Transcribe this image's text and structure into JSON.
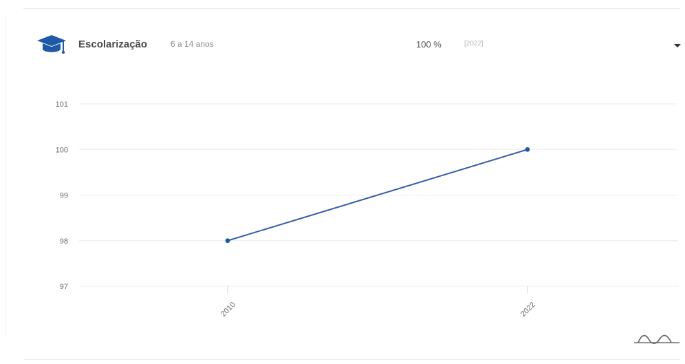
{
  "panel": {
    "title": "Escolarização",
    "subtitle": "6 a 14 anos",
    "value": "100 %",
    "value_year": "[2022]",
    "icon": "graduation-cap-icon",
    "dropdown_icon": "caret-down-icon",
    "chart_switch_icon": "chart-view-icon"
  },
  "colors": {
    "accent": "#1f5aa6",
    "line": "#355da8",
    "grid": "#ececec",
    "axis_text": "#6a6a6a"
  },
  "chart_data": {
    "type": "line",
    "categories": [
      "2010",
      "2022"
    ],
    "values": [
      98,
      100
    ],
    "title": "",
    "xlabel": "",
    "ylabel": "",
    "ylim": [
      97,
      101
    ],
    "y_ticks": [
      "101",
      "100",
      "99",
      "98",
      "97"
    ],
    "grid": true,
    "legend": "none"
  }
}
